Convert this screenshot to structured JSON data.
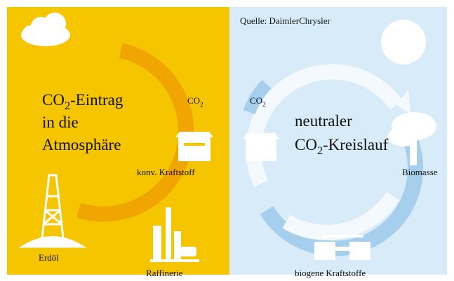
{
  "left": {
    "title": {
      "prefix": "CO",
      "sub": "2",
      "suffix": "-Eintrag",
      "lines": [
        "in die",
        "Atmosphäre"
      ]
    },
    "co2": {
      "prefix": "CO",
      "sub": "2"
    },
    "fuel": "konv. Kraftstoff",
    "oil": "Erdöl",
    "refinery": "Raffinerie"
  },
  "right": {
    "source": "Quelle: DaimlerChrysler",
    "title": {
      "line1": "neutraler",
      "prefix": "CO",
      "sub": "2",
      "suffix": "-Kreislauf"
    },
    "co2": {
      "prefix": "CO",
      "sub": "2"
    },
    "biomass": "Biomasse",
    "fuel": "biogene Kraftstoffe"
  }
}
